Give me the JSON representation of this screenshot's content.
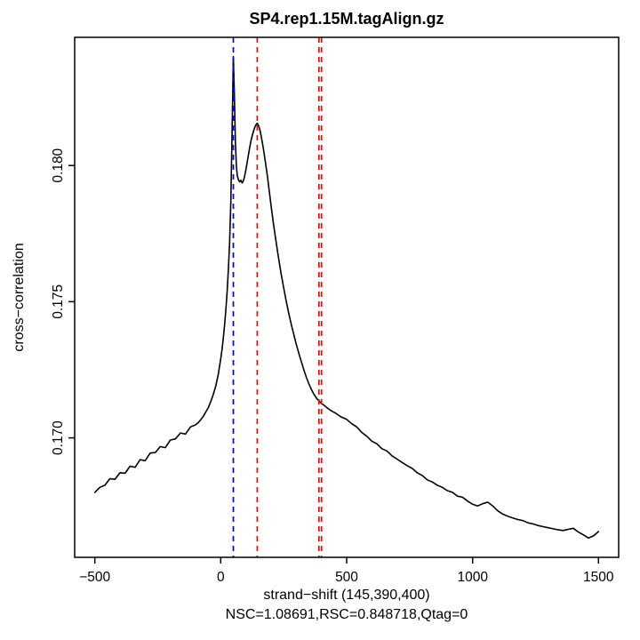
{
  "page": {
    "background": "#ffffff"
  },
  "chart_data": {
    "type": "line",
    "title": "SP4.rep1.15M.tagAlign.gz",
    "xlabel": "strand−shift (145,390,400)",
    "xlabel_sub": "NSC=1.08691,RSC=0.848718,Qtag=0",
    "ylabel": "cross−correlation",
    "xlim": [
      -500,
      1500
    ],
    "ylim": [
      0.16632,
      0.184
    ],
    "xtick_values": [
      -500,
      0,
      500,
      1000,
      1500
    ],
    "xtick_labels": [
      "−500",
      "0",
      "500",
      "1000",
      "1500"
    ],
    "ytick_values": [
      0.17,
      0.175,
      0.18
    ],
    "ytick_labels": [
      "0.170",
      "0.175",
      "0.180"
    ],
    "grid": false,
    "legend": "none",
    "line_color": "#000000",
    "vlines": [
      {
        "x": 50,
        "color": "#0000ff",
        "style": "dashed",
        "name": "phantom-peak-readlength"
      },
      {
        "x": 145,
        "color": "#ff0000",
        "style": "dashed",
        "name": "fragment-length-peak-1"
      },
      {
        "x": 390,
        "color": "#ff0000",
        "style": "dashed",
        "name": "fragment-length-peak-2"
      },
      {
        "x": 400,
        "color": "#ff0000",
        "style": "dashed",
        "name": "fragment-length-peak-3"
      }
    ],
    "metrics": {
      "estimated_fragment_lengths": [
        145,
        390,
        400
      ],
      "NSC": 1.08691,
      "RSC": 0.848718,
      "Qtag": 0
    },
    "series": [
      {
        "name": "cross-correlation",
        "x": [
          -500,
          -480,
          -460,
          -440,
          -420,
          -400,
          -380,
          -360,
          -340,
          -320,
          -300,
          -280,
          -260,
          -240,
          -220,
          -200,
          -180,
          -160,
          -140,
          -120,
          -100,
          -90,
          -80,
          -70,
          -60,
          -50,
          -40,
          -30,
          -20,
          -10,
          0,
          5,
          10,
          15,
          20,
          25,
          30,
          35,
          40,
          45,
          50,
          54,
          58,
          62,
          66,
          70,
          75,
          80,
          85,
          90,
          95,
          100,
          105,
          110,
          115,
          120,
          125,
          130,
          135,
          140,
          145,
          150,
          155,
          160,
          165,
          170,
          175,
          180,
          185,
          190,
          195,
          200,
          210,
          220,
          230,
          240,
          250,
          260,
          270,
          280,
          290,
          300,
          310,
          320,
          330,
          340,
          350,
          360,
          370,
          380,
          390,
          400,
          410,
          420,
          430,
          440,
          450,
          460,
          470,
          480,
          490,
          500,
          520,
          540,
          560,
          580,
          600,
          620,
          640,
          660,
          680,
          700,
          720,
          740,
          760,
          780,
          800,
          820,
          840,
          860,
          880,
          900,
          920,
          940,
          960,
          980,
          1000,
          1020,
          1040,
          1060,
          1080,
          1100,
          1120,
          1140,
          1160,
          1180,
          1200,
          1220,
          1240,
          1260,
          1280,
          1300,
          1320,
          1340,
          1360,
          1380,
          1400,
          1420,
          1440,
          1460,
          1480,
          1500
        ],
        "y": [
          0.168,
          0.16818,
          0.16826,
          0.1685,
          0.16848,
          0.16872,
          0.1687,
          0.16896,
          0.16892,
          0.1692,
          0.16916,
          0.16944,
          0.16946,
          0.16968,
          0.16964,
          0.16992,
          0.16996,
          0.17018,
          0.17014,
          0.1704,
          0.17048,
          0.17055,
          0.17066,
          0.17078,
          0.17094,
          0.1711,
          0.17132,
          0.17158,
          0.1719,
          0.17232,
          0.1729,
          0.17325,
          0.17366,
          0.17412,
          0.17466,
          0.1753,
          0.1761,
          0.17715,
          0.17868,
          0.18125,
          0.184,
          0.1827,
          0.1809,
          0.18,
          0.17962,
          0.17948,
          0.1794,
          0.17946,
          0.17936,
          0.17944,
          0.17962,
          0.17986,
          0.18012,
          0.1804,
          0.18066,
          0.1809,
          0.1811,
          0.18126,
          0.1814,
          0.1815,
          0.18155,
          0.18147,
          0.18132,
          0.1811,
          0.18085,
          0.18058,
          0.18028,
          0.17996,
          0.17962,
          0.17925,
          0.17888,
          0.17852,
          0.17782,
          0.17718,
          0.17658,
          0.17602,
          0.1755,
          0.17502,
          0.17458,
          0.17416,
          0.1738,
          0.17344,
          0.1731,
          0.1728,
          0.1725,
          0.17222,
          0.17198,
          0.17178,
          0.1716,
          0.17146,
          0.17136,
          0.17126,
          0.1712,
          0.17112,
          0.17105,
          0.17099,
          0.17094,
          0.17088,
          0.17082,
          0.17076,
          0.17072,
          0.17068,
          0.17052,
          0.1704,
          0.1702,
          0.17006,
          0.16988,
          0.16978,
          0.1696,
          0.16952,
          0.16934,
          0.16922,
          0.1691,
          0.16898,
          0.16888,
          0.16872,
          0.16862,
          0.16846,
          0.16838,
          0.16826,
          0.16818,
          0.16806,
          0.168,
          0.16786,
          0.16782,
          0.16768,
          0.16756,
          0.1675,
          0.16758,
          0.16764,
          0.1675,
          0.16732,
          0.1672,
          0.16712,
          0.16706,
          0.167,
          0.16696,
          0.16688,
          0.16684,
          0.16678,
          0.16674,
          0.1667,
          0.16666,
          0.16662,
          0.1666,
          0.16664,
          0.16668,
          0.16654,
          0.16644,
          0.16632,
          0.1664,
          0.16656
        ]
      }
    ]
  }
}
